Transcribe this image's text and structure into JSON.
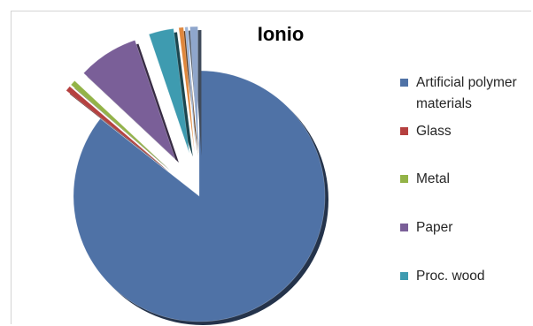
{
  "chart_data": {
    "type": "pie",
    "title": "Ionio",
    "legend_position": "right",
    "series": [
      {
        "name": "Artificial polymer materials",
        "value": 85.6,
        "color": "#4f72a6",
        "exploded": false
      },
      {
        "name": "Glass",
        "value": 0.7,
        "color": "#b5403f",
        "exploded": true
      },
      {
        "name": "Metal",
        "value": 0.7,
        "color": "#93b347",
        "exploded": true
      },
      {
        "name": "Paper",
        "value": 7.8,
        "color": "#7a5f98",
        "exploded": true
      },
      {
        "name": "Proc. wood",
        "value": 3.2,
        "color": "#3e9bb0",
        "exploded": true
      },
      {
        "value": 0.6,
        "color": "#e0873c",
        "exploded": true
      },
      {
        "value": 0.4,
        "color": "#9db4d6",
        "exploded": true
      },
      {
        "value": 1.0,
        "color": "#8fa6cc",
        "exploded": true
      }
    ]
  }
}
